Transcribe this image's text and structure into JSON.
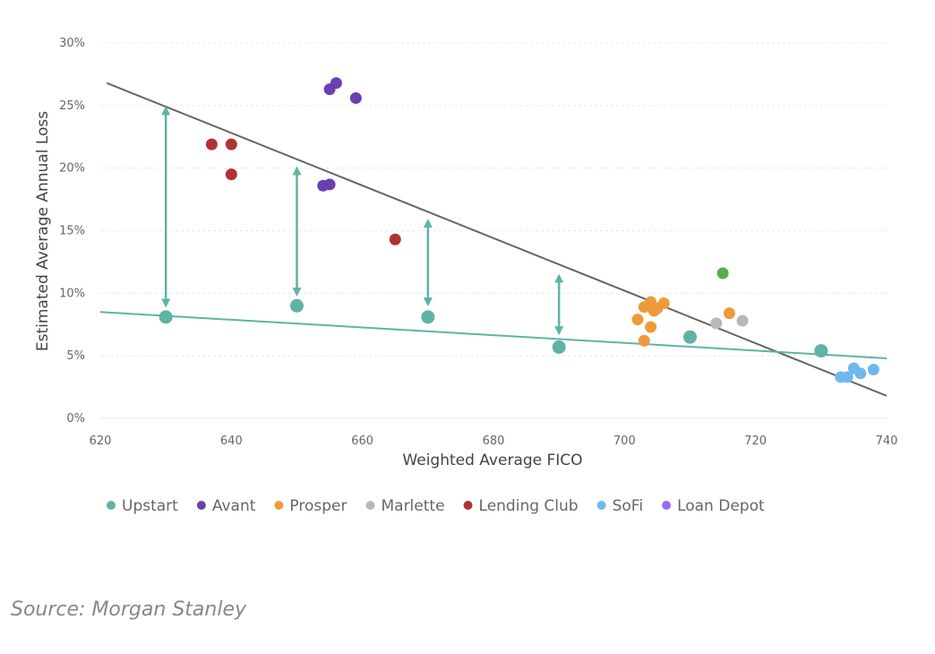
{
  "chart_data": {
    "type": "scatter",
    "xlabel": "Weighted Average FICO",
    "ylabel": "Estimated Average Annual Loss",
    "xlim": [
      620,
      740
    ],
    "ylim": [
      0,
      30
    ],
    "x_ticks": [
      "620",
      "640",
      "660",
      "680",
      "700",
      "720",
      "740"
    ],
    "y_ticks": [
      "0%",
      "5%",
      "10%",
      "15%",
      "20%",
      "25%",
      "30%"
    ],
    "grid": true,
    "legend_position": "bottom",
    "series": [
      {
        "name": "Upstart",
        "color": "#5fb3a6",
        "points": [
          [
            630,
            8.1
          ],
          [
            650,
            9.0
          ],
          [
            670,
            8.1
          ],
          [
            690,
            5.7
          ],
          [
            710,
            6.5
          ],
          [
            730,
            5.4
          ]
        ]
      },
      {
        "name": "Avant",
        "color": "#6a3fb0",
        "points": [
          [
            655,
            26.3
          ],
          [
            656,
            26.8
          ],
          [
            659,
            25.6
          ],
          [
            654,
            18.6
          ],
          [
            655,
            18.7
          ]
        ]
      },
      {
        "name": "Prosper",
        "color": "#ef9a3a",
        "points": [
          [
            702,
            7.9
          ],
          [
            703,
            8.9
          ],
          [
            704,
            9.3
          ],
          [
            704.5,
            8.6
          ],
          [
            705,
            8.8
          ],
          [
            706,
            9.2
          ],
          [
            704,
            7.3
          ],
          [
            703,
            6.2
          ],
          [
            716,
            8.4
          ]
        ]
      },
      {
        "name": "Marlette",
        "color": "#b8b8b8",
        "points": [
          [
            714,
            7.6
          ],
          [
            718,
            7.8
          ]
        ]
      },
      {
        "name": "Lending Club",
        "color": "#b03232",
        "points": [
          [
            637,
            21.9
          ],
          [
            640,
            21.9
          ],
          [
            640,
            19.5
          ],
          [
            665,
            14.3
          ]
        ]
      },
      {
        "name": "SoFi",
        "color": "#6fb8ee",
        "points": [
          [
            733,
            3.3
          ],
          [
            734,
            3.3
          ],
          [
            735,
            4.0
          ],
          [
            736,
            3.6
          ],
          [
            738,
            3.9
          ]
        ]
      },
      {
        "name": "Loan Depot",
        "color": "#9a6ee8",
        "points": []
      }
    ],
    "extra_points": [
      {
        "x": 715,
        "y": 11.6,
        "color": "#5aaa4e"
      }
    ],
    "trend_lines": [
      {
        "color": "#666666",
        "from": [
          621,
          26.8
        ],
        "to": [
          740,
          1.8
        ]
      },
      {
        "color": "#5fb3a6",
        "from": [
          620,
          8.5
        ],
        "to": [
          740,
          4.8
        ]
      }
    ],
    "arrows": [
      {
        "x": 630,
        "y_low": 9.2,
        "y_high": 24.6
      },
      {
        "x": 650,
        "y_low": 10.1,
        "y_high": 19.8
      },
      {
        "x": 670,
        "y_low": 9.3,
        "y_high": 15.6
      },
      {
        "x": 690,
        "y_low": 7.0,
        "y_high": 11.2
      }
    ],
    "arrow_color": "#5fb3a6"
  },
  "source": "Source: Morgan Stanley"
}
